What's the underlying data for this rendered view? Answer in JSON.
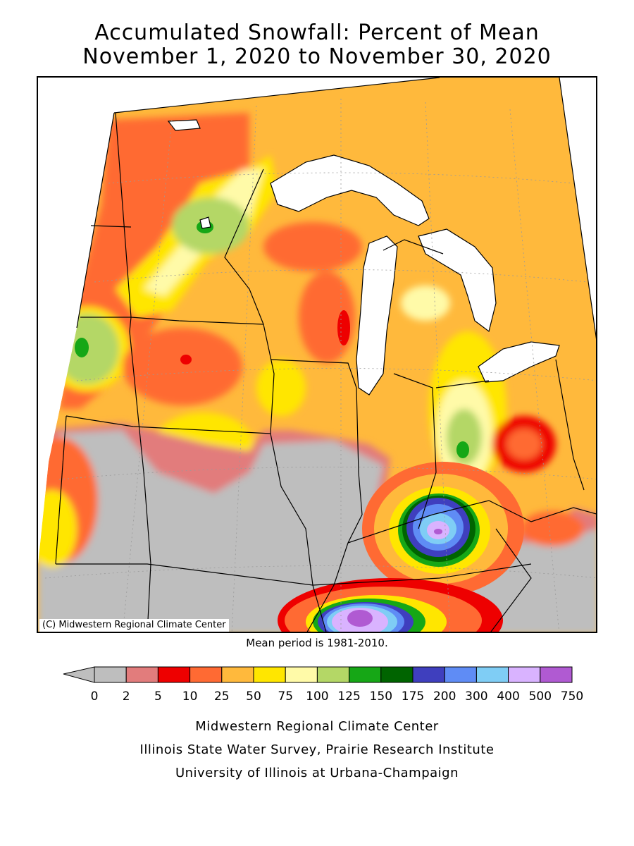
{
  "title_line1": "Accumulated Snowfall: Percent of Mean",
  "title_line2": "November 1, 2020 to November 30, 2020",
  "copyright": "(C) Midwestern Regional Climate Center",
  "mean_period": "Mean period is 1981-2010.",
  "legend": {
    "ticks": [
      "0",
      "2",
      "5",
      "10",
      "25",
      "50",
      "75",
      "100",
      "125",
      "150",
      "175",
      "200",
      "300",
      "400",
      "500",
      "750"
    ],
    "colors": [
      "#bebebe",
      "#e27c7c",
      "#ee0000",
      "#ff6a33",
      "#ffb93c",
      "#ffe600",
      "#fffaa8",
      "#b4d766",
      "#16a716",
      "#006400",
      "#3f3fbe",
      "#5f8cf5",
      "#7fcdf5",
      "#d9b3ff",
      "#b05ad2"
    ]
  },
  "credits": [
    "Midwestern Regional Climate Center",
    "Illinois State Water Survey, Prairie Research Institute",
    "University of Illinois at Urbana-Champaign"
  ],
  "colors": {
    "lake": "#ffffff",
    "border": "#000000",
    "grid": "#9a9a9a"
  }
}
